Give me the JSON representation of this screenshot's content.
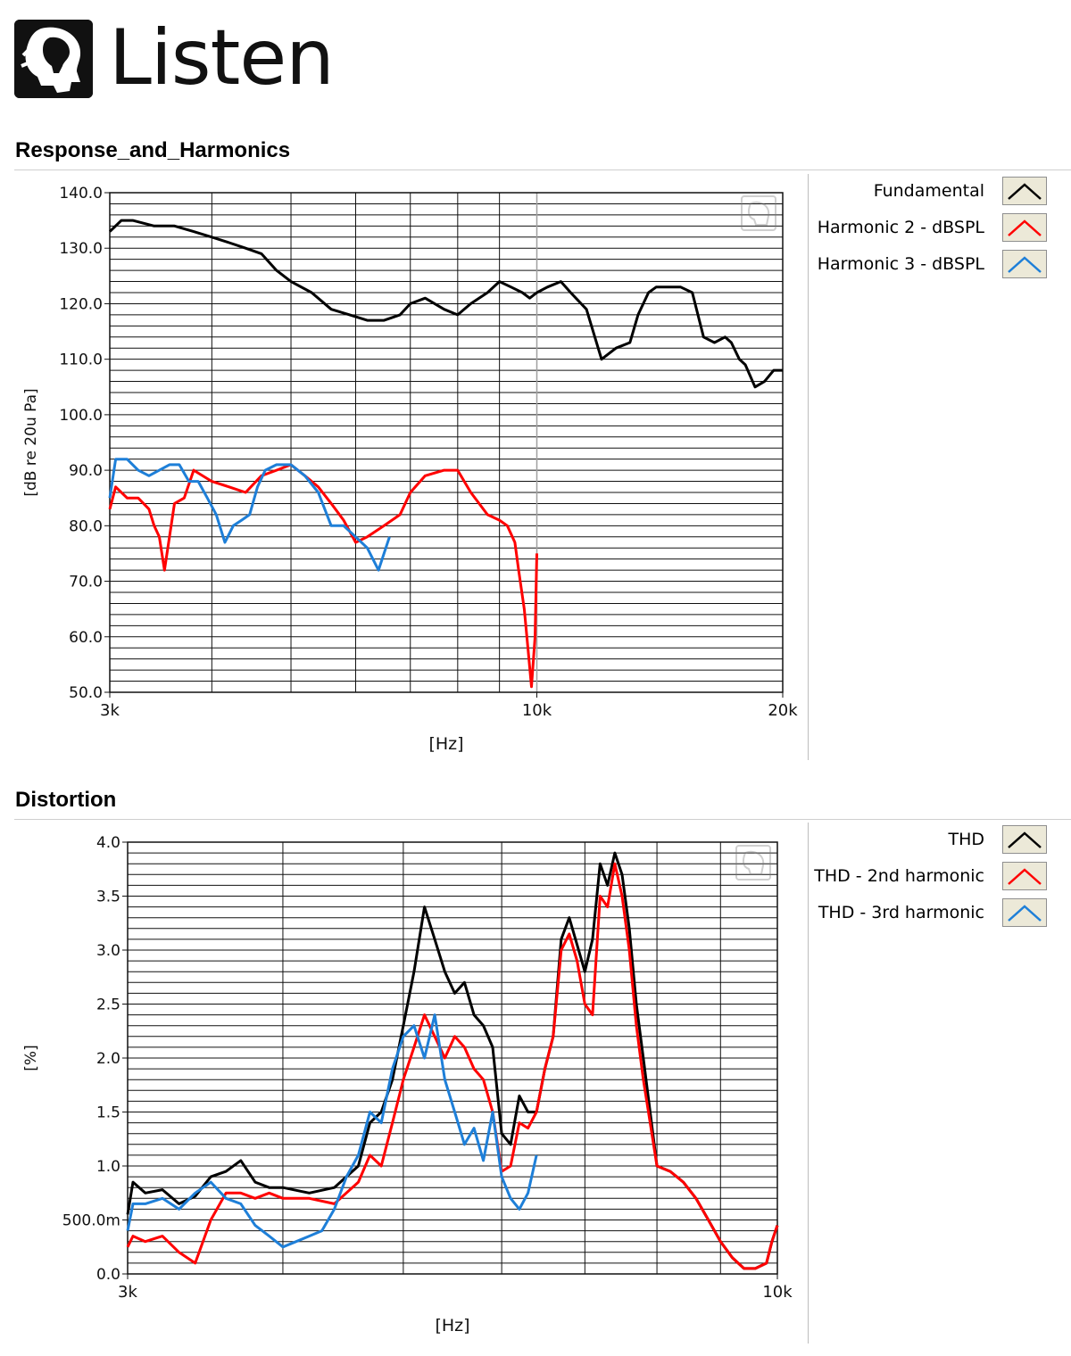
{
  "brand": {
    "name": "Listen",
    "icon": "head-silhouette-icon"
  },
  "panels": [
    {
      "title": "Response_and_Harmonics",
      "legend": [
        {
          "label": "Fundamental",
          "color": "#000000"
        },
        {
          "label": "Harmonic 2 - dBSPL",
          "color": "#ff0000"
        },
        {
          "label": "Harmonic 3 - dBSPL",
          "color": "#1e7fd8"
        }
      ]
    },
    {
      "title": "Distortion",
      "legend": [
        {
          "label": "THD",
          "color": "#000000"
        },
        {
          "label": "THD - 2nd harmonic",
          "color": "#ff0000"
        },
        {
          "label": "THD - 3rd harmonic",
          "color": "#1e7fd8"
        }
      ]
    }
  ],
  "chart_data": [
    {
      "type": "line",
      "title": "Response_and_Harmonics",
      "xlabel": "[Hz]",
      "ylabel": "[dB re 20u Pa]",
      "xscale": "log",
      "xlim": [
        3000,
        20000
      ],
      "ylim": [
        50,
        140
      ],
      "xticks": [
        3000,
        10000,
        20000
      ],
      "xtick_labels": [
        "3k",
        "10k",
        "20k"
      ],
      "yticks": [
        50,
        60,
        70,
        80,
        90,
        100,
        110,
        120,
        130,
        140
      ],
      "ytick_labels": [
        "50.0",
        "60.0",
        "70.0",
        "80.0",
        "90.0",
        "100.0",
        "110.0",
        "120.0",
        "130.0",
        "140.0"
      ],
      "grid": true,
      "legend_position": "right",
      "series": [
        {
          "name": "Fundamental",
          "color": "#000000",
          "x": [
            3000,
            3100,
            3200,
            3400,
            3600,
            3800,
            4000,
            4200,
            4400,
            4600,
            4800,
            5000,
            5300,
            5600,
            5900,
            6200,
            6500,
            6800,
            7000,
            7300,
            7700,
            8000,
            8300,
            8700,
            9000,
            9300,
            9600,
            9800,
            10000,
            10300,
            10700,
            11000,
            11500,
            12000,
            12500,
            13000,
            13300,
            13700,
            14000,
            14500,
            15000,
            15500,
            16000,
            16500,
            17000,
            17300,
            17700,
            18000,
            18500,
            19000,
            19500,
            20000
          ],
          "y": [
            133,
            135,
            135,
            134,
            134,
            133,
            132,
            131,
            130,
            129,
            126,
            124,
            122,
            119,
            118,
            117,
            117,
            118,
            120,
            121,
            119,
            118,
            120,
            122,
            124,
            123,
            122,
            121,
            122,
            123,
            124,
            122,
            119,
            110,
            112,
            113,
            118,
            122,
            123,
            123,
            123,
            122,
            114,
            113,
            114,
            113,
            110,
            109,
            105,
            106,
            108,
            108
          ]
        },
        {
          "name": "Harmonic 2 - dBSPL",
          "color": "#ff0000",
          "x": [
            3000,
            3050,
            3150,
            3250,
            3350,
            3400,
            3450,
            3500,
            3600,
            3700,
            3800,
            4000,
            4200,
            4400,
            4600,
            4800,
            5000,
            5200,
            5400,
            5600,
            5800,
            6000,
            6200,
            6500,
            6800,
            7000,
            7300,
            7700,
            8000,
            8300,
            8700,
            9000,
            9200,
            9400,
            9500,
            9650,
            9750,
            9850,
            9950,
            10000
          ],
          "y": [
            83,
            87,
            85,
            85,
            83,
            80,
            78,
            72,
            84,
            85,
            90,
            88,
            87,
            86,
            89,
            90,
            91,
            89,
            87,
            84,
            81,
            77,
            78,
            80,
            82,
            86,
            89,
            90,
            90,
            86,
            82,
            81,
            80,
            77,
            72,
            65,
            58,
            51,
            60,
            75
          ]
        },
        {
          "name": "Harmonic 3 - dBSPL",
          "color": "#1e7fd8",
          "x": [
            3000,
            3050,
            3150,
            3250,
            3350,
            3450,
            3550,
            3650,
            3750,
            3850,
            3950,
            4050,
            4150,
            4250,
            4350,
            4450,
            4550,
            4650,
            4800,
            5000,
            5200,
            5400,
            5600,
            5800,
            6000,
            6200,
            6400,
            6600
          ],
          "y": [
            85,
            92,
            92,
            90,
            89,
            90,
            91,
            91,
            88,
            88,
            85,
            82,
            77,
            80,
            81,
            82,
            87,
            90,
            91,
            91,
            89,
            86,
            80,
            80,
            78,
            76,
            72,
            78
          ]
        }
      ]
    },
    {
      "type": "line",
      "title": "Distortion",
      "xlabel": "[Hz]",
      "ylabel": "[%]",
      "xscale": "log",
      "xlim": [
        3000,
        10000
      ],
      "ylim": [
        0,
        4
      ],
      "xticks": [
        3000,
        10000
      ],
      "xtick_labels": [
        "3k",
        "10k"
      ],
      "yticks": [
        0,
        0.5,
        1,
        1.5,
        2,
        2.5,
        3,
        3.5,
        4
      ],
      "ytick_labels": [
        "0.0",
        "500.0m",
        "1.0",
        "1.5",
        "2.0",
        "2.5",
        "3.0",
        "3.5",
        "4.0"
      ],
      "grid": true,
      "legend_position": "right",
      "series": [
        {
          "name": "THD",
          "color": "#000000",
          "x": [
            3000,
            3030,
            3100,
            3200,
            3300,
            3400,
            3500,
            3600,
            3700,
            3800,
            3900,
            4000,
            4200,
            4400,
            4600,
            4700,
            4800,
            4900,
            5000,
            5100,
            5200,
            5300,
            5400,
            5500,
            5600,
            5700,
            5800,
            5900,
            6000,
            6100,
            6200,
            6300,
            6400,
            6500,
            6600,
            6700,
            6800,
            6900,
            7000,
            7100,
            7200,
            7300,
            7400,
            7500,
            7600,
            7700,
            7800,
            8000,
            8200,
            8400,
            8600,
            8800,
            9000,
            9200,
            9400,
            9600,
            9800,
            9900,
            10000
          ],
          "y": [
            0.55,
            0.85,
            0.75,
            0.78,
            0.65,
            0.72,
            0.9,
            0.95,
            1.05,
            0.85,
            0.8,
            0.8,
            0.75,
            0.8,
            1.0,
            1.4,
            1.5,
            1.8,
            2.3,
            2.8,
            3.4,
            3.1,
            2.8,
            2.6,
            2.7,
            2.4,
            2.3,
            2.1,
            1.3,
            1.2,
            1.65,
            1.5,
            1.5,
            1.9,
            2.2,
            3.1,
            3.3,
            3.05,
            2.8,
            3.1,
            3.8,
            3.6,
            3.9,
            3.7,
            3.2,
            2.5,
            2.0,
            1.0,
            0.95,
            0.85,
            0.7,
            0.5,
            0.3,
            0.15,
            0.05,
            0.05,
            0.1,
            0.3,
            0.45
          ]
        },
        {
          "name": "THD - 2nd harmonic",
          "color": "#ff0000",
          "x": [
            3000,
            3030,
            3100,
            3200,
            3300,
            3400,
            3500,
            3600,
            3700,
            3800,
            3900,
            4000,
            4200,
            4400,
            4600,
            4700,
            4800,
            4900,
            5000,
            5100,
            5200,
            5300,
            5400,
            5500,
            5600,
            5700,
            5800,
            5900,
            6000,
            6100,
            6200,
            6300,
            6400,
            6500,
            6600,
            6700,
            6800,
            6900,
            7000,
            7100,
            7200,
            7300,
            7400,
            7500,
            7600,
            7700,
            7800,
            8000,
            8200,
            8400,
            8600,
            8800,
            9000,
            9200,
            9400,
            9600,
            9800,
            9900,
            10000
          ],
          "y": [
            0.25,
            0.35,
            0.3,
            0.35,
            0.2,
            0.1,
            0.5,
            0.75,
            0.75,
            0.7,
            0.75,
            0.7,
            0.7,
            0.65,
            0.85,
            1.1,
            1.0,
            1.4,
            1.8,
            2.1,
            2.4,
            2.2,
            2.0,
            2.2,
            2.1,
            1.9,
            1.8,
            1.5,
            0.95,
            1.0,
            1.4,
            1.35,
            1.5,
            1.9,
            2.2,
            3.0,
            3.15,
            2.9,
            2.5,
            2.4,
            3.5,
            3.4,
            3.8,
            3.5,
            3.0,
            2.3,
            1.8,
            1.0,
            0.95,
            0.85,
            0.7,
            0.5,
            0.3,
            0.15,
            0.05,
            0.05,
            0.1,
            0.3,
            0.45
          ]
        },
        {
          "name": "THD - 3rd harmonic",
          "color": "#1e7fd8",
          "x": [
            3000,
            3030,
            3100,
            3200,
            3300,
            3400,
            3500,
            3600,
            3700,
            3800,
            3900,
            4000,
            4100,
            4200,
            4300,
            4400,
            4500,
            4600,
            4700,
            4800,
            4900,
            5000,
            5100,
            5200,
            5300,
            5400,
            5500,
            5600,
            5700,
            5800,
            5900,
            6000,
            6100,
            6200,
            6300,
            6400
          ],
          "y": [
            0.4,
            0.65,
            0.65,
            0.7,
            0.6,
            0.75,
            0.85,
            0.7,
            0.65,
            0.45,
            0.35,
            0.25,
            0.3,
            0.35,
            0.4,
            0.6,
            0.9,
            1.1,
            1.5,
            1.4,
            1.9,
            2.2,
            2.3,
            2.0,
            2.4,
            1.8,
            1.5,
            1.2,
            1.35,
            1.05,
            1.5,
            0.9,
            0.7,
            0.6,
            0.75,
            1.1
          ]
        }
      ]
    }
  ]
}
